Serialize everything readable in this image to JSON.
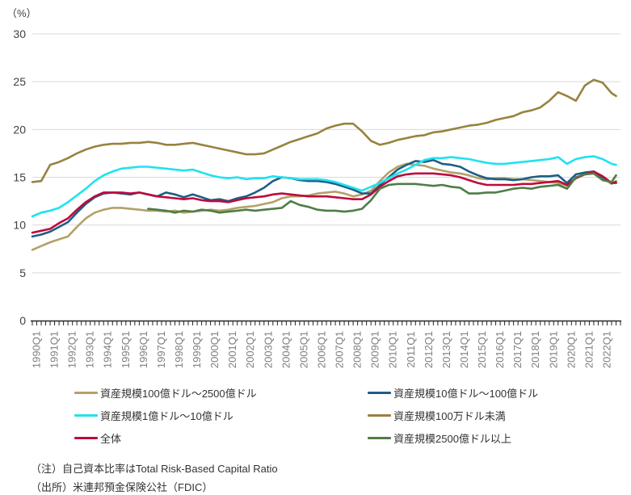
{
  "chart": {
    "unit": "（%）"
  },
  "notes": {
    "note": "（注）自己資本比率はTotal Risk-Based Capital Ratio",
    "source": "（出所）米連邦預金保険公社（FDIC）"
  },
  "chart_data": {
    "type": "line",
    "title": "",
    "xlabel": "",
    "ylabel": "（%）",
    "ylim": [
      0,
      30
    ],
    "yticks": [
      0,
      5,
      10,
      15,
      20,
      25,
      30
    ],
    "grid": "horizontal",
    "legend_position": "bottom",
    "x_domain": [
      1990,
      2023
    ],
    "x_tick_labels": [
      "1990Q1",
      "1991Q1",
      "1992Q1",
      "1993Q1",
      "1994Q1",
      "1995Q1",
      "1996Q1",
      "1997Q1",
      "1998Q1",
      "1999Q1",
      "2000Q1",
      "2001Q1",
      "2002Q1",
      "2003Q1",
      "2004Q1",
      "2005Q1",
      "2006Q1",
      "2007Q1",
      "2008Q1",
      "2009Q1",
      "2010Q1",
      "2011Q1",
      "2012Q1",
      "2013Q1",
      "2014Q1",
      "2015Q1",
      "2016Q1",
      "2017Q1",
      "2018Q1",
      "2019Q1",
      "2020Q1",
      "2021Q1",
      "2022Q1"
    ],
    "x": [
      1990,
      1990.5,
      1991,
      1991.5,
      1992,
      1992.5,
      1993,
      1993.5,
      1994,
      1994.5,
      1995,
      1995.5,
      1996,
      1996.5,
      1997,
      1997.5,
      1998,
      1998.5,
      1999,
      1999.5,
      2000,
      2000.5,
      2001,
      2001.5,
      2002,
      2002.5,
      2003,
      2003.5,
      2004,
      2004.5,
      2005,
      2005.5,
      2006,
      2006.5,
      2007,
      2007.5,
      2008,
      2008.5,
      2009,
      2009.5,
      2010,
      2010.5,
      2011,
      2011.5,
      2012,
      2012.5,
      2013,
      2013.5,
      2014,
      2014.5,
      2015,
      2015.5,
      2016,
      2016.5,
      2017,
      2017.5,
      2018,
      2018.5,
      2019,
      2019.5,
      2020,
      2020.5,
      2021,
      2021.5,
      2022,
      2022.5,
      2022.75
    ],
    "series": [
      {
        "name": "資産規模100億ドル～2500億ドル",
        "color": "#b2a169",
        "values": [
          7.4,
          7.8,
          8.2,
          8.5,
          8.8,
          9.8,
          10.7,
          11.3,
          11.6,
          11.8,
          11.8,
          11.7,
          11.6,
          11.5,
          11.5,
          11.4,
          11.5,
          11.3,
          11.4,
          11.5,
          11.6,
          11.5,
          11.6,
          11.8,
          11.9,
          12.0,
          12.2,
          12.4,
          12.8,
          13.0,
          13.0,
          13.1,
          13.3,
          13.4,
          13.5,
          13.3,
          13.0,
          13.2,
          13.6,
          14.6,
          15.5,
          16.1,
          16.4,
          16.3,
          16.2,
          15.9,
          15.7,
          15.5,
          15.4,
          15.2,
          14.9,
          14.8,
          14.9,
          14.9,
          14.8,
          14.8,
          14.7,
          14.6,
          14.5,
          14.4,
          14.1,
          14.9,
          15.4,
          15.5,
          14.9,
          14.3,
          14.6
        ]
      },
      {
        "name": "資産規模10億ドル～100億ドル",
        "color": "#1d5e85",
        "values": [
          8.8,
          9.0,
          9.3,
          9.8,
          10.3,
          11.3,
          12.2,
          12.9,
          13.3,
          13.4,
          13.3,
          13.2,
          13.4,
          13.2,
          13.0,
          13.4,
          13.2,
          12.9,
          13.2,
          12.9,
          12.6,
          12.7,
          12.5,
          12.8,
          13.0,
          13.4,
          13.9,
          14.6,
          15.0,
          14.9,
          14.7,
          14.6,
          14.6,
          14.5,
          14.3,
          14.0,
          13.7,
          13.3,
          13.3,
          14.2,
          15.0,
          15.8,
          16.3,
          16.7,
          16.6,
          16.8,
          16.4,
          16.3,
          16.1,
          15.6,
          15.2,
          14.9,
          14.8,
          14.8,
          14.7,
          14.8,
          15.0,
          15.1,
          15.1,
          15.2,
          14.4,
          15.3,
          15.5,
          15.6,
          15.0,
          14.4,
          14.4
        ]
      },
      {
        "name": "資産規模1億ドル～10億ドル",
        "color": "#1fe2f0",
        "values": [
          10.9,
          11.3,
          11.5,
          11.8,
          12.4,
          13.1,
          13.8,
          14.6,
          15.2,
          15.6,
          15.9,
          16.0,
          16.1,
          16.1,
          16.0,
          15.9,
          15.8,
          15.7,
          15.8,
          15.5,
          15.2,
          15.0,
          14.9,
          15.0,
          14.8,
          14.9,
          14.9,
          15.1,
          15.0,
          14.9,
          14.8,
          14.8,
          14.8,
          14.7,
          14.5,
          14.2,
          13.9,
          13.6,
          14.0,
          14.4,
          14.9,
          15.4,
          15.8,
          16.3,
          16.8,
          17.0,
          17.0,
          17.1,
          17.0,
          16.9,
          16.7,
          16.5,
          16.4,
          16.4,
          16.5,
          16.6,
          16.7,
          16.8,
          16.9,
          17.1,
          16.4,
          16.9,
          17.1,
          17.2,
          16.9,
          16.4,
          16.3
        ]
      },
      {
        "name": "資産規模100万ドル未満",
        "color": "#97833f",
        "values": [
          14.5,
          14.6,
          16.3,
          16.6,
          17.0,
          17.5,
          17.9,
          18.2,
          18.4,
          18.5,
          18.5,
          18.6,
          18.6,
          18.7,
          18.6,
          18.4,
          18.4,
          18.5,
          18.6,
          18.4,
          18.2,
          18.0,
          17.8,
          17.6,
          17.4,
          17.4,
          17.5,
          17.9,
          18.3,
          18.7,
          19.0,
          19.3,
          19.6,
          20.1,
          20.4,
          20.6,
          20.6,
          19.8,
          18.8,
          18.4,
          18.6,
          18.9,
          19.1,
          19.3,
          19.4,
          19.7,
          19.8,
          20.0,
          20.2,
          20.4,
          20.5,
          20.7,
          21.0,
          21.2,
          21.4,
          21.8,
          22.0,
          22.3,
          23.0,
          23.9,
          23.5,
          23.0,
          24.6,
          25.2,
          24.9,
          23.8,
          23.5
        ]
      },
      {
        "name": "全体",
        "color": "#be0a3c",
        "values": [
          9.2,
          9.4,
          9.6,
          10.2,
          10.7,
          11.6,
          12.4,
          13.0,
          13.4,
          13.4,
          13.4,
          13.3,
          13.4,
          13.2,
          13.0,
          12.9,
          12.8,
          12.7,
          12.8,
          12.6,
          12.5,
          12.5,
          12.4,
          12.6,
          12.8,
          12.9,
          13.0,
          13.2,
          13.3,
          13.2,
          13.1,
          13.0,
          13.0,
          13.0,
          12.9,
          12.8,
          12.7,
          12.7,
          13.2,
          14.0,
          14.6,
          15.1,
          15.3,
          15.4,
          15.4,
          15.4,
          15.3,
          15.2,
          15.0,
          14.7,
          14.4,
          14.2,
          14.2,
          14.2,
          14.2,
          14.3,
          14.3,
          14.4,
          14.5,
          14.6,
          14.2,
          14.9,
          15.3,
          15.6,
          15.1,
          14.4,
          14.5
        ]
      },
      {
        "name": "資産規模2500億ドル以上",
        "color": "#4e7d46",
        "values": [
          null,
          null,
          null,
          null,
          null,
          null,
          null,
          null,
          null,
          null,
          null,
          null,
          null,
          11.7,
          11.6,
          11.5,
          11.3,
          11.5,
          11.4,
          11.6,
          11.5,
          11.3,
          11.4,
          11.5,
          11.6,
          11.5,
          11.6,
          11.7,
          11.8,
          12.5,
          12.1,
          11.9,
          11.6,
          11.5,
          11.5,
          11.4,
          11.5,
          11.7,
          12.6,
          13.8,
          14.2,
          14.3,
          14.3,
          14.3,
          14.2,
          14.1,
          14.2,
          14.0,
          13.9,
          13.3,
          13.3,
          13.4,
          13.4,
          13.6,
          13.8,
          13.9,
          13.8,
          14.0,
          14.1,
          14.2,
          13.8,
          15.0,
          15.3,
          15.4,
          14.7,
          14.5,
          15.2
        ]
      }
    ]
  }
}
